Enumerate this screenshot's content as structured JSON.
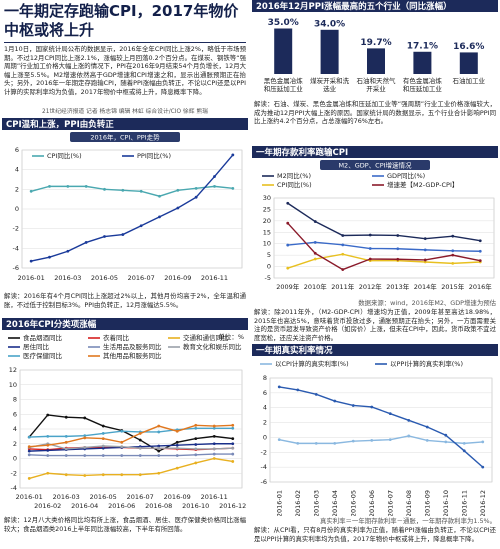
{
  "header": {
    "title": "一年期定存跑输CPI，2017年物价中枢或将上升",
    "intro": "1月10日，国家统计局公布的数据显示，2016年全年CPI同比上涨2%，略低于市场预期。不过12月CPI同比上涨2.1%，涨幅较上月回落0.2个百分点。在煤炭、钢铁等“强周期”行业加工价格大幅上涨的情况下，PPI在2016年9月结束54个月负增长，12月大幅上涨至5.5%。M2增速依然高于GDP增速和CPI增速之和，显示出通胀预期正在抬头；另外，2016年一年期定存跑输CPI，随着PPI涨幅由负转正，不论以CPI还是以PPI计算的实际利率均为负值，2017年物价中枢或将上升，降息概率下降。",
    "byline": "21世纪经济报道 记者 杨志锦 编辑 林虹 综合设计/CIO 徐辉 熊瑞"
  },
  "notes": {
    "cpi_ppi": "解读：2016年有4个月CPI同比上涨超过2%以上，其他月份均高于2%，全年温和通胀，不过低于控制目标3%。PPI由负转正，12月涨幅达5.5%。",
    "cpi_items": "解读：12月八大类价格同比均有所上涨，食品烟酒、居住、医疗保健类价格同比涨幅较大；食品烟酒类2016上半年同比涨幅较高，下半年有所回落。",
    "ppi_top5": "解读：石油、煤炭、黑色金属冶炼和压延加工业等“强周期”行业工业价格涨幅较大，成为推动12月PPI大幅上涨的原因。国家统计局的数据显示，五个行业合计影响PPI同比上涨约4.2个百分点，占总涨幅的76%左右。",
    "m2_source": "数据来源：wind，2016年M2、GDP增速为预估",
    "m2": "解读：除2011年外，（M2-GDP-CPI）增速均为正值，2009年甚至高达18.98%，2015年也高达5%，意味着货币投放过多，通胀预期正在抬头；另外，一方面需要关注的是货币超发导致资产价格（如房价）上涨，但未在CPI中，因此，货币政策不宜过度宽松，还应关注资产价格。",
    "real_rate_source": "真实利率＝一年期存款利率－通胀，一年期存款利率为1.5%。",
    "real_rate": "解读：从CPI看，只有8月份的真实利率为正值，随着PPI涨幅由负转正，不论以CPI还是以PPI计算的真实利率均为负值，2017年物价中枢或将上升，降息概率下降。"
  },
  "chart_data": [
    {
      "type": "line",
      "title": "CPI温和上涨，PPI由负转正",
      "subtitle": "2016年，CPI、PPI走势",
      "categories": [
        "2016-01",
        null,
        "2016-03",
        null,
        "2016-05",
        null,
        "2016-07",
        null,
        "2016-09",
        null,
        "2016-11",
        null
      ],
      "series": [
        {
          "name": "CPI同比(%)",
          "color": "#4aa8b0",
          "values": [
            1.8,
            2.3,
            2.3,
            2.3,
            2.0,
            1.9,
            1.8,
            1.3,
            1.9,
            2.1,
            2.3,
            2.1
          ]
        },
        {
          "name": "PPI同比(%)",
          "color": "#1a3a9a",
          "values": [
            -5.3,
            -4.9,
            -4.3,
            -3.4,
            -2.8,
            -2.6,
            -1.7,
            -0.8,
            0.1,
            1.2,
            3.3,
            5.5
          ]
        }
      ],
      "ylim": [
        -6,
        6
      ],
      "yticks": [
        -6,
        -4,
        -2,
        0,
        2,
        4,
        6
      ],
      "grid": true
    },
    {
      "type": "line",
      "title": "2016年CPI分类项涨幅",
      "unit": "单位：%",
      "categories": [
        "2016-01",
        "2016-02",
        "2016-03",
        "2016-04",
        "2016-05",
        "2016-06",
        "2016-07",
        "2016-08",
        "2016-09",
        "2016-10",
        "2016-11",
        "2016-12"
      ],
      "series": [
        {
          "name": "食品烟酒同比",
          "color": "#111111",
          "values": [
            2.9,
            5.9,
            5.6,
            5.5,
            4.4,
            3.8,
            2.5,
            1.0,
            2.2,
            2.7,
            3.0,
            2.7
          ]
        },
        {
          "name": "衣着同比",
          "color": "#d62020",
          "values": [
            1.3,
            1.2,
            1.4,
            1.5,
            1.5,
            1.5,
            1.4,
            1.4,
            1.3,
            1.2,
            1.3,
            1.4
          ]
        },
        {
          "name": "交通和通信同比",
          "color": "#e8b020",
          "values": [
            -2.7,
            -2.0,
            -2.2,
            -2.3,
            -2.2,
            -2.2,
            -2.2,
            -2.0,
            -1.3,
            -0.6,
            0.0,
            -0.4
          ]
        },
        {
          "name": "居住同比",
          "color": "#1a2f8a",
          "values": [
            1.0,
            1.1,
            1.2,
            1.3,
            1.4,
            1.5,
            1.6,
            1.7,
            1.8,
            1.9,
            2.0,
            2.0
          ]
        },
        {
          "name": "生活用品及服务同比",
          "color": "#7a8ab8",
          "values": [
            0.5,
            0.4,
            0.4,
            0.4,
            0.4,
            0.4,
            0.4,
            0.4,
            0.4,
            0.5,
            0.6,
            0.6
          ]
        },
        {
          "name": "教育文化和娱乐同比",
          "color": "#9aa0a8",
          "values": [
            1.5,
            2.0,
            1.3,
            1.5,
            1.7,
            1.6,
            1.4,
            1.4,
            1.4,
            1.3,
            1.3,
            1.4
          ]
        },
        {
          "name": "医疗保健同比",
          "color": "#4aa3c8",
          "values": [
            2.9,
            3.0,
            3.0,
            3.1,
            3.4,
            3.7,
            3.6,
            3.6,
            3.9,
            4.1,
            4.1,
            4.1
          ]
        },
        {
          "name": "其他用品和服务同比",
          "color": "#e07820",
          "values": [
            1.6,
            1.8,
            2.2,
            2.8,
            2.7,
            2.2,
            3.4,
            4.4,
            3.7,
            4.5,
            4.4,
            4.5
          ]
        }
      ],
      "ylim": [
        -4,
        12
      ],
      "yticks": [
        -4,
        -2,
        0,
        2,
        4,
        6,
        8,
        10,
        12
      ],
      "grid": true
    },
    {
      "type": "bar",
      "title": "2016年12月PPI涨幅最高的五个行业（同比涨幅）",
      "categories": [
        "黑色金属冶炼和压延加工业",
        "煤炭开采和洗选业",
        "石油和天然气开采业",
        "有色金属冶炼和压延加工业",
        "石油加工业"
      ],
      "values": [
        35,
        34,
        19.7,
        17.1,
        16.6
      ],
      "value_labels": [
        "35.0%",
        "34.0%",
        "19.7%",
        "17.1%",
        "16.6%"
      ],
      "color": "#1c2a5a",
      "ylim": [
        0,
        40
      ]
    },
    {
      "type": "line",
      "title": "一年期存款利率跑输CPI",
      "subtitle": "M2、GDP、CPI增速情况",
      "categories": [
        "2009年",
        "2010年",
        "2011年",
        "2012年",
        "2013年",
        "2014年",
        "2015年",
        "2016年"
      ],
      "series": [
        {
          "name": "M2同比(%)",
          "color": "#1c2a5a",
          "values": [
            27.7,
            19.7,
            13.6,
            13.8,
            13.6,
            12.2,
            13.3,
            11.3
          ]
        },
        {
          "name": "GDP同比(%)",
          "color": "#3a6ac8",
          "values": [
            9.4,
            10.6,
            9.5,
            7.9,
            7.8,
            7.3,
            6.9,
            6.7
          ]
        },
        {
          "name": "CPI同比(%)",
          "color": "#e8c020",
          "values": [
            -0.7,
            3.3,
            5.4,
            2.6,
            2.6,
            2.0,
            1.4,
            2.0
          ]
        },
        {
          "name": "增速差【M2-GDP-CPI】",
          "color": "#8a1a2a",
          "values": [
            18.98,
            5.8,
            -1.3,
            3.3,
            3.2,
            2.9,
            5.0,
            2.6
          ]
        }
      ],
      "ylim": [
        -5,
        30
      ],
      "yticks": [
        -5,
        0,
        5,
        10,
        15,
        20,
        25,
        30
      ],
      "grid": true
    },
    {
      "type": "line",
      "title": "一年期真实利率情况",
      "categories": [
        "2016-01",
        "2016-02",
        "2016-03",
        "2016-04",
        "2016-05",
        "2016-06",
        "2016-07",
        "2016-08",
        "2016-09",
        "2016-10",
        "2016-11",
        "2016-12"
      ],
      "series": [
        {
          "name": "以CPI计算的真实利率(%)",
          "color": "#8ab8e0",
          "values": [
            -0.3,
            -0.8,
            -0.8,
            -0.8,
            -0.5,
            -0.4,
            -0.3,
            0.2,
            -0.4,
            -0.6,
            -0.8,
            -0.6
          ]
        },
        {
          "name": "以PPI计算的真实利率(%)",
          "color": "#2a5ab0",
          "values": [
            6.8,
            6.4,
            5.8,
            4.9,
            4.3,
            4.1,
            3.2,
            2.3,
            1.4,
            0.3,
            -1.8,
            -4.0
          ]
        }
      ],
      "ylim": [
        -6,
        8
      ],
      "yticks": [
        -6,
        -4,
        -2,
        0,
        2,
        4,
        6,
        8
      ],
      "grid": true
    }
  ]
}
